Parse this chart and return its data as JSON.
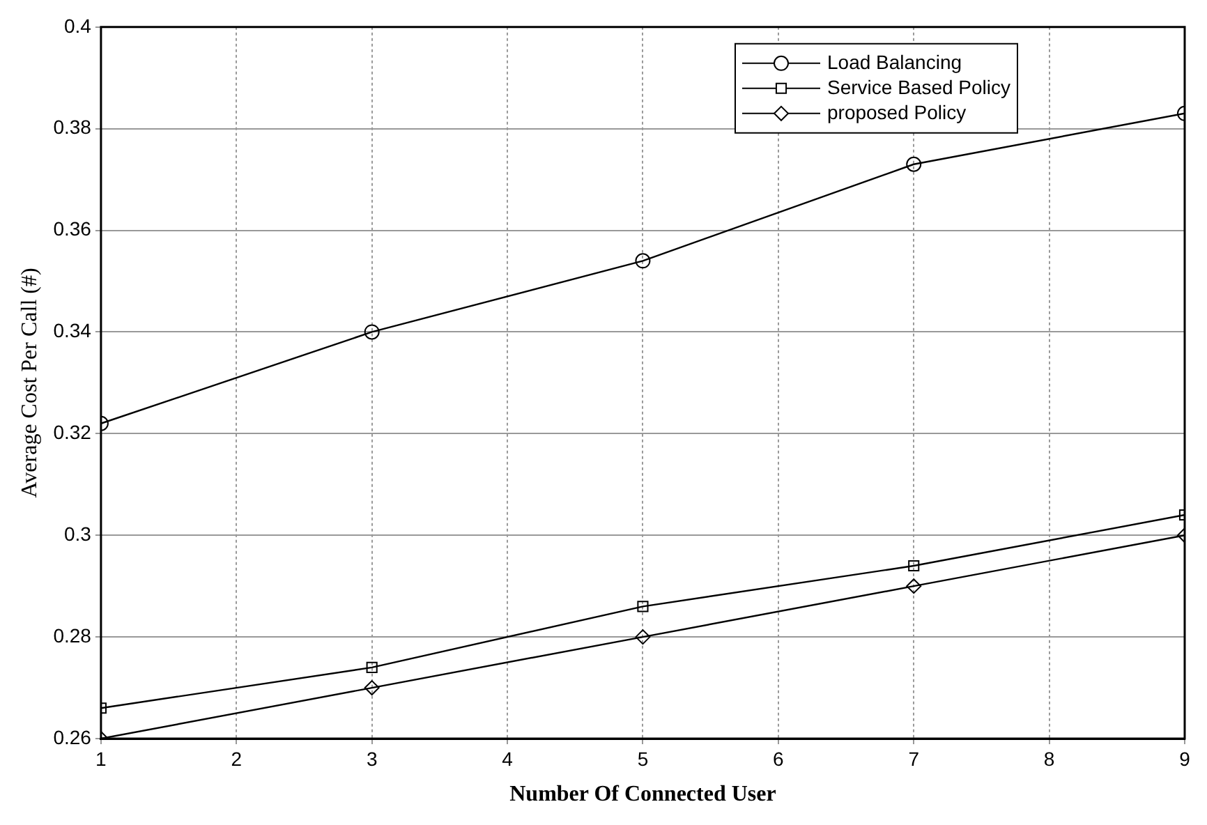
{
  "chart_data": {
    "type": "line",
    "xlabel": "Number Of Connected User",
    "ylabel": "Average Cost Per Call (#)",
    "x": [
      1,
      3,
      5,
      7,
      9
    ],
    "series": [
      {
        "name": "Load Balancing",
        "color": "#000000",
        "marker": "circle",
        "values": [
          0.322,
          0.34,
          0.354,
          0.373,
          0.383
        ]
      },
      {
        "name": "Service Based Policy",
        "color": "#000000",
        "marker": "square",
        "values": [
          0.266,
          0.274,
          0.286,
          0.294,
          0.304
        ]
      },
      {
        "name": "proposed Policy",
        "color": "#000000",
        "marker": "diamond",
        "values": [
          0.26,
          0.27,
          0.28,
          0.29,
          0.3
        ]
      }
    ],
    "xlim": [
      1,
      9
    ],
    "xticks": [
      1,
      2,
      3,
      4,
      5,
      6,
      7,
      8,
      9
    ],
    "ylim": [
      0.26,
      0.4
    ],
    "yticks": [
      0.26,
      0.28,
      0.3,
      0.32,
      0.34,
      0.36,
      0.38,
      0.4
    ],
    "grid": true,
    "legend": "top right",
    "line_style": "solid"
  }
}
